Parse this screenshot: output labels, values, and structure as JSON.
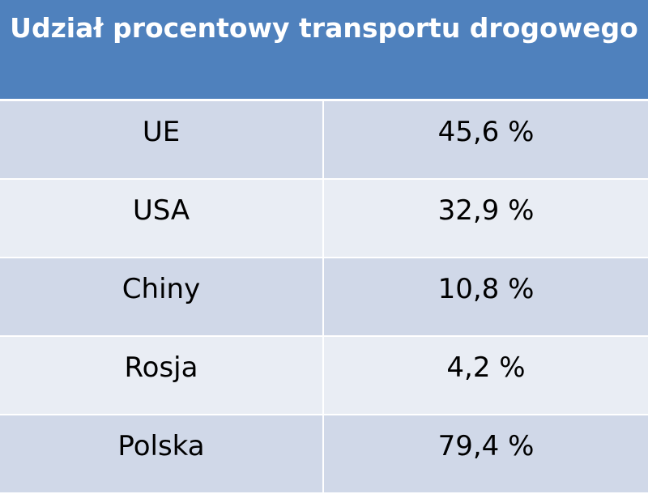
{
  "chart_data": {
    "type": "table",
    "title": "Udział procentowy transportu drogowego",
    "columns": [
      "",
      ""
    ],
    "rows": [
      [
        "UE",
        "45,6 %"
      ],
      [
        "USA",
        "32,9 %"
      ],
      [
        "Chiny",
        "10,8 %"
      ],
      [
        "Rosja",
        "4,2 %"
      ],
      [
        "Polska",
        "79,4 %"
      ]
    ],
    "values": [
      45.6,
      32.9,
      10.8,
      4.2,
      79.4
    ],
    "unit": "%"
  },
  "colors": {
    "header": "#4f81bd",
    "row_band_dark": "#d0d8e8",
    "row_band_light": "#e9edf4"
  }
}
